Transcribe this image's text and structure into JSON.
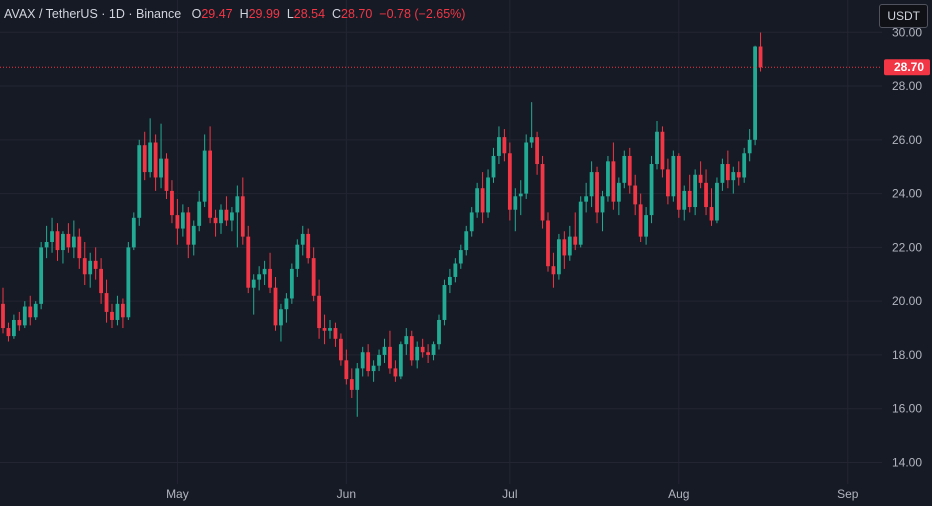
{
  "legend": {
    "symbol": "AVAX / TetherUS · 1D · Binance",
    "o_label": "O",
    "o_value": "29.47",
    "h_label": "H",
    "h_value": "29.99",
    "l_label": "L",
    "l_value": "28.54",
    "c_label": "C",
    "c_value": "28.70",
    "change": "−0.78 (−2.65%)"
  },
  "currency_button": "USDT",
  "last_price_label": "28.70",
  "colors": {
    "up": "#22ab94",
    "down": "#f23645",
    "background": "#161a25",
    "grid": "#232632"
  },
  "chart_data": {
    "type": "candlestick",
    "ylim": [
      13.2,
      31.2
    ],
    "yticks": [
      "30.00",
      "28.00",
      "26.00",
      "24.00",
      "22.00",
      "20.00",
      "18.00",
      "16.00",
      "14.00"
    ],
    "xticks": [
      {
        "label": "May",
        "index": 32
      },
      {
        "label": "Jun",
        "index": 63
      },
      {
        "label": "Jul",
        "index": 93
      },
      {
        "label": "Aug",
        "index": 124
      },
      {
        "label": "Sep",
        "index": 155
      }
    ],
    "last_price": 28.7,
    "candles": [
      [
        19.9,
        20.5,
        18.8,
        19.0
      ],
      [
        19.0,
        19.2,
        18.5,
        18.7
      ],
      [
        18.7,
        19.5,
        18.6,
        19.3
      ],
      [
        19.3,
        19.6,
        18.9,
        19.1
      ],
      [
        19.1,
        20.0,
        19.0,
        19.8
      ],
      [
        19.8,
        20.2,
        19.1,
        19.4
      ],
      [
        19.4,
        20.0,
        19.3,
        19.9
      ],
      [
        19.9,
        22.2,
        19.7,
        22.0
      ],
      [
        22.0,
        22.8,
        21.6,
        22.2
      ],
      [
        22.2,
        23.1,
        21.8,
        22.6
      ],
      [
        22.6,
        22.9,
        21.5,
        21.9
      ],
      [
        21.9,
        22.6,
        21.4,
        22.5
      ],
      [
        22.5,
        22.9,
        21.8,
        22.0
      ],
      [
        22.0,
        23.0,
        21.6,
        22.4
      ],
      [
        22.4,
        22.7,
        21.2,
        21.6
      ],
      [
        21.6,
        22.2,
        20.6,
        21.0
      ],
      [
        21.0,
        21.8,
        20.5,
        21.5
      ],
      [
        21.5,
        22.0,
        20.8,
        21.2
      ],
      [
        21.2,
        21.6,
        19.9,
        20.3
      ],
      [
        20.3,
        20.8,
        19.2,
        19.6
      ],
      [
        19.6,
        19.9,
        19.0,
        19.3
      ],
      [
        19.3,
        20.2,
        19.1,
        19.9
      ],
      [
        19.9,
        20.1,
        19.0,
        19.4
      ],
      [
        19.4,
        22.2,
        19.3,
        22.0
      ],
      [
        22.0,
        23.3,
        21.9,
        23.1
      ],
      [
        23.1,
        26.0,
        22.8,
        25.8
      ],
      [
        25.8,
        26.3,
        24.5,
        24.8
      ],
      [
        24.8,
        26.8,
        24.6,
        25.9
      ],
      [
        25.9,
        26.2,
        24.1,
        24.6
      ],
      [
        24.6,
        26.6,
        24.2,
        25.3
      ],
      [
        25.3,
        25.5,
        23.8,
        24.1
      ],
      [
        24.1,
        24.5,
        22.9,
        23.2
      ],
      [
        23.2,
        23.8,
        22.1,
        22.7
      ],
      [
        22.7,
        23.6,
        22.4,
        23.3
      ],
      [
        23.3,
        23.5,
        21.6,
        22.1
      ],
      [
        22.1,
        23.0,
        21.7,
        22.8
      ],
      [
        22.8,
        24.1,
        22.6,
        23.7
      ],
      [
        23.7,
        26.2,
        23.5,
        25.6
      ],
      [
        25.6,
        26.5,
        22.9,
        23.1
      ],
      [
        23.1,
        23.4,
        22.4,
        22.9
      ],
      [
        22.9,
        23.6,
        22.5,
        23.4
      ],
      [
        23.4,
        23.9,
        22.8,
        23.0
      ],
      [
        23.0,
        23.5,
        22.6,
        23.3
      ],
      [
        23.3,
        24.3,
        22.0,
        23.9
      ],
      [
        23.9,
        24.6,
        22.1,
        22.4
      ],
      [
        22.4,
        22.8,
        20.3,
        20.5
      ],
      [
        20.5,
        21.0,
        19.5,
        20.8
      ],
      [
        20.8,
        21.3,
        20.4,
        21.0
      ],
      [
        21.0,
        21.5,
        20.6,
        21.2
      ],
      [
        21.2,
        21.8,
        20.3,
        20.5
      ],
      [
        20.5,
        20.9,
        18.9,
        19.1
      ],
      [
        19.1,
        19.9,
        18.5,
        19.7
      ],
      [
        19.7,
        20.3,
        19.2,
        20.1
      ],
      [
        20.1,
        21.4,
        19.9,
        21.2
      ],
      [
        21.2,
        22.3,
        20.9,
        22.1
      ],
      [
        22.1,
        22.8,
        21.7,
        22.5
      ],
      [
        22.5,
        22.7,
        21.4,
        21.6
      ],
      [
        21.6,
        22.0,
        20.0,
        20.2
      ],
      [
        20.2,
        20.8,
        18.6,
        19.0
      ],
      [
        19.0,
        19.5,
        18.4,
        18.9
      ],
      [
        18.9,
        19.3,
        18.6,
        19.0
      ],
      [
        19.0,
        19.2,
        18.3,
        18.6
      ],
      [
        18.6,
        18.8,
        17.6,
        17.8
      ],
      [
        17.8,
        18.2,
        16.9,
        17.1
      ],
      [
        17.1,
        17.5,
        16.4,
        16.7
      ],
      [
        16.7,
        17.7,
        15.7,
        17.5
      ],
      [
        17.5,
        18.3,
        17.2,
        18.1
      ],
      [
        18.1,
        18.4,
        17.2,
        17.4
      ],
      [
        17.4,
        17.8,
        17.0,
        17.6
      ],
      [
        17.6,
        18.2,
        17.4,
        18.0
      ],
      [
        18.0,
        18.6,
        17.7,
        18.3
      ],
      [
        18.3,
        18.9,
        17.3,
        17.5
      ],
      [
        17.5,
        17.8,
        17.0,
        17.2
      ],
      [
        17.2,
        18.5,
        17.1,
        18.4
      ],
      [
        18.4,
        19.0,
        18.0,
        18.7
      ],
      [
        18.7,
        18.9,
        17.6,
        17.8
      ],
      [
        17.8,
        18.5,
        17.5,
        18.3
      ],
      [
        18.3,
        18.6,
        17.9,
        18.1
      ],
      [
        18.1,
        18.4,
        17.7,
        18.0
      ],
      [
        18.0,
        18.5,
        17.8,
        18.4
      ],
      [
        18.4,
        19.5,
        18.2,
        19.3
      ],
      [
        19.3,
        20.8,
        19.1,
        20.6
      ],
      [
        20.6,
        21.2,
        20.3,
        20.9
      ],
      [
        20.9,
        21.6,
        20.7,
        21.4
      ],
      [
        21.4,
        22.1,
        21.2,
        21.9
      ],
      [
        21.9,
        22.8,
        21.7,
        22.6
      ],
      [
        22.6,
        23.5,
        22.4,
        23.3
      ],
      [
        23.3,
        24.4,
        23.1,
        24.2
      ],
      [
        24.2,
        24.8,
        22.9,
        23.3
      ],
      [
        23.3,
        24.9,
        23.1,
        24.6
      ],
      [
        24.6,
        25.7,
        24.4,
        25.4
      ],
      [
        25.4,
        26.5,
        25.1,
        26.1
      ],
      [
        26.1,
        26.4,
        25.2,
        25.5
      ],
      [
        25.5,
        25.9,
        23.0,
        23.4
      ],
      [
        23.4,
        24.2,
        22.6,
        23.9
      ],
      [
        23.9,
        24.5,
        23.2,
        24.0
      ],
      [
        24.0,
        26.2,
        23.8,
        25.9
      ],
      [
        25.9,
        27.4,
        25.7,
        26.1
      ],
      [
        26.1,
        26.3,
        24.7,
        25.1
      ],
      [
        25.1,
        25.4,
        22.7,
        23.0
      ],
      [
        23.0,
        23.3,
        21.1,
        21.3
      ],
      [
        21.3,
        21.8,
        20.5,
        21.0
      ],
      [
        21.0,
        22.5,
        20.8,
        22.3
      ],
      [
        22.3,
        22.6,
        21.2,
        21.7
      ],
      [
        21.7,
        22.8,
        21.5,
        22.4
      ],
      [
        22.4,
        23.3,
        21.9,
        22.1
      ],
      [
        22.1,
        23.9,
        22.0,
        23.7
      ],
      [
        23.7,
        24.4,
        23.3,
        23.9
      ],
      [
        23.9,
        25.2,
        23.5,
        24.8
      ],
      [
        24.8,
        25.0,
        22.9,
        23.3
      ],
      [
        23.3,
        24.1,
        22.6,
        23.9
      ],
      [
        23.9,
        25.4,
        23.7,
        25.2
      ],
      [
        25.2,
        25.9,
        23.4,
        23.7
      ],
      [
        23.7,
        24.6,
        23.2,
        24.4
      ],
      [
        24.4,
        25.6,
        24.2,
        25.4
      ],
      [
        25.4,
        25.7,
        24.0,
        24.3
      ],
      [
        24.3,
        24.7,
        23.2,
        23.6
      ],
      [
        23.6,
        24.0,
        22.2,
        22.4
      ],
      [
        22.4,
        23.5,
        22.1,
        23.2
      ],
      [
        23.2,
        25.4,
        22.9,
        25.1
      ],
      [
        25.1,
        26.7,
        24.9,
        26.3
      ],
      [
        26.3,
        26.5,
        24.6,
        24.9
      ],
      [
        24.9,
        25.3,
        23.6,
        23.9
      ],
      [
        23.9,
        25.6,
        23.7,
        25.4
      ],
      [
        25.4,
        25.5,
        23.1,
        23.4
      ],
      [
        23.4,
        24.3,
        23.0,
        24.1
      ],
      [
        24.1,
        24.7,
        23.3,
        23.5
      ],
      [
        23.5,
        24.9,
        23.2,
        24.7
      ],
      [
        24.7,
        25.2,
        24.2,
        24.4
      ],
      [
        24.4,
        24.9,
        23.2,
        23.5
      ],
      [
        23.5,
        24.2,
        22.8,
        23.0
      ],
      [
        23.0,
        24.6,
        22.9,
        24.4
      ],
      [
        24.4,
        25.3,
        24.1,
        25.1
      ],
      [
        25.1,
        25.6,
        24.2,
        24.5
      ],
      [
        24.5,
        25.0,
        24.0,
        24.8
      ],
      [
        24.8,
        25.2,
        24.3,
        24.6
      ],
      [
        24.6,
        25.7,
        24.4,
        25.5
      ],
      [
        25.5,
        26.4,
        25.2,
        26.0
      ],
      [
        26.0,
        29.5,
        25.8,
        29.47
      ],
      [
        29.47,
        29.99,
        28.54,
        28.7
      ]
    ]
  }
}
